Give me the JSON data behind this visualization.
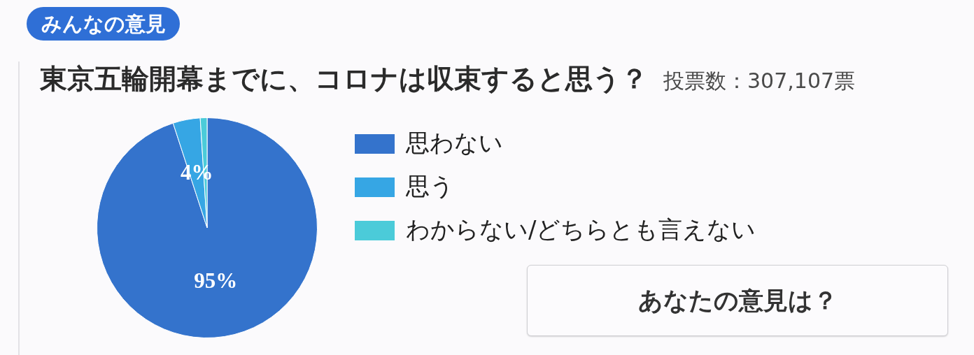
{
  "chart_data": {
    "type": "pie",
    "title": "東京五輪開幕までに、コロナは収束すると思う？",
    "subtitle": "投票数：307,107票",
    "categories": [
      "思わない",
      "思う",
      "わからない/どちらとも言えない"
    ],
    "values": [
      95,
      4,
      1
    ],
    "colors": [
      "#3473cc",
      "#36a6e4",
      "#4bcbd9"
    ],
    "value_labels": [
      "95%",
      "4%",
      null
    ],
    "legend": "right",
    "annotations": [
      "みんなの意見",
      "あなたの意見は？"
    ]
  }
}
